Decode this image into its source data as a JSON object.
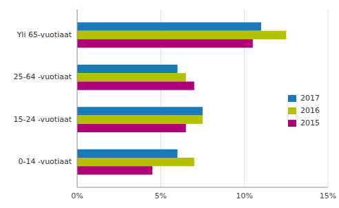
{
  "chart_data": {
    "type": "bar",
    "orientation": "horizontal",
    "categories": [
      "0-14 -vuotiaat",
      "15-24 -vuotiaat",
      "25-64 -vuotiaat",
      "Yli 65-vuotiaat"
    ],
    "series": [
      {
        "name": "2017",
        "color": "#1a7ab5",
        "values": [
          6.0,
          7.5,
          6.0,
          11.0
        ]
      },
      {
        "name": "2016",
        "color": "#b5c000",
        "values": [
          7.0,
          7.5,
          6.5,
          12.5
        ]
      },
      {
        "name": "2015",
        "color": "#b0007a",
        "values": [
          4.5,
          6.5,
          7.0,
          10.5
        ]
      }
    ],
    "xlim": [
      0,
      15
    ],
    "xticks": [
      {
        "value": 0,
        "label": "0%"
      },
      {
        "value": 5,
        "label": "5%"
      },
      {
        "value": 10,
        "label": "10%"
      },
      {
        "value": 15,
        "label": "15%"
      }
    ],
    "grid": true,
    "legend": "right"
  }
}
